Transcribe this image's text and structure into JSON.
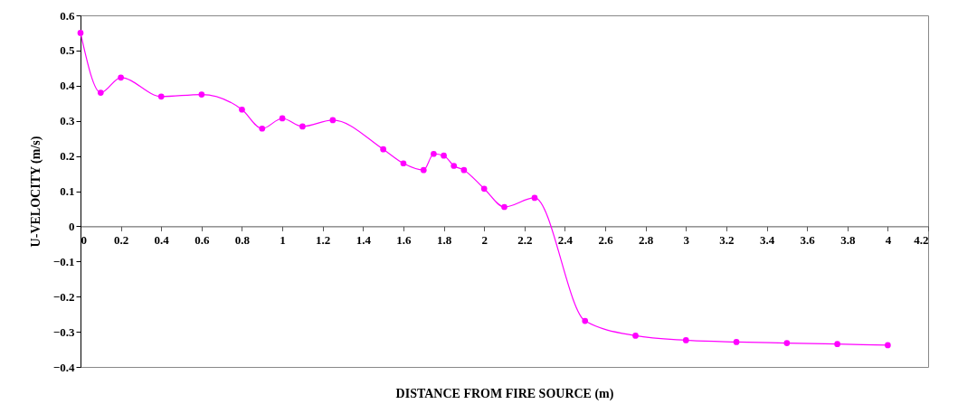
{
  "chart_data": {
    "type": "line",
    "xlabel": "DISTANCE FROM FIRE SOURCE (m)",
    "ylabel": "U-VELOCITY (m/s)",
    "x": [
      0,
      0.1,
      0.2,
      0.4,
      0.6,
      0.8,
      0.9,
      1.0,
      1.1,
      1.25,
      1.5,
      1.6,
      1.7,
      1.75,
      1.8,
      1.85,
      1.9,
      2.0,
      2.1,
      2.25,
      2.5,
      2.75,
      3.0,
      3.25,
      3.5,
      3.75,
      4.0
    ],
    "series": [
      {
        "color": "#ff00ff",
        "values": [
          0.55,
          0.38,
          0.423,
          0.369,
          0.375,
          0.332,
          0.278,
          0.307,
          0.284,
          0.302,
          0.219,
          0.179,
          0.16,
          0.206,
          0.201,
          0.172,
          0.16,
          0.107,
          0.055,
          0.081,
          -0.269,
          -0.311,
          -0.324,
          -0.329,
          -0.332,
          -0.335,
          -0.338
        ]
      }
    ],
    "xlim": [
      0,
      4.2
    ],
    "xticks": [
      0,
      0.2,
      0.4,
      0.6,
      0.8,
      1,
      1.2,
      1.4,
      1.6,
      1.8,
      2,
      2.2,
      2.4,
      2.6,
      2.8,
      3,
      3.2,
      3.4,
      3.6,
      3.8,
      4,
      4.2
    ],
    "ylim": [
      -0.4,
      0.6
    ],
    "yticks": [
      -0.4,
      -0.3,
      -0.2,
      -0.1,
      0,
      0.1,
      0.2,
      0.3,
      0.4,
      0.5,
      0.6
    ],
    "grid": false,
    "marker": "circle",
    "line_style": "solid"
  }
}
